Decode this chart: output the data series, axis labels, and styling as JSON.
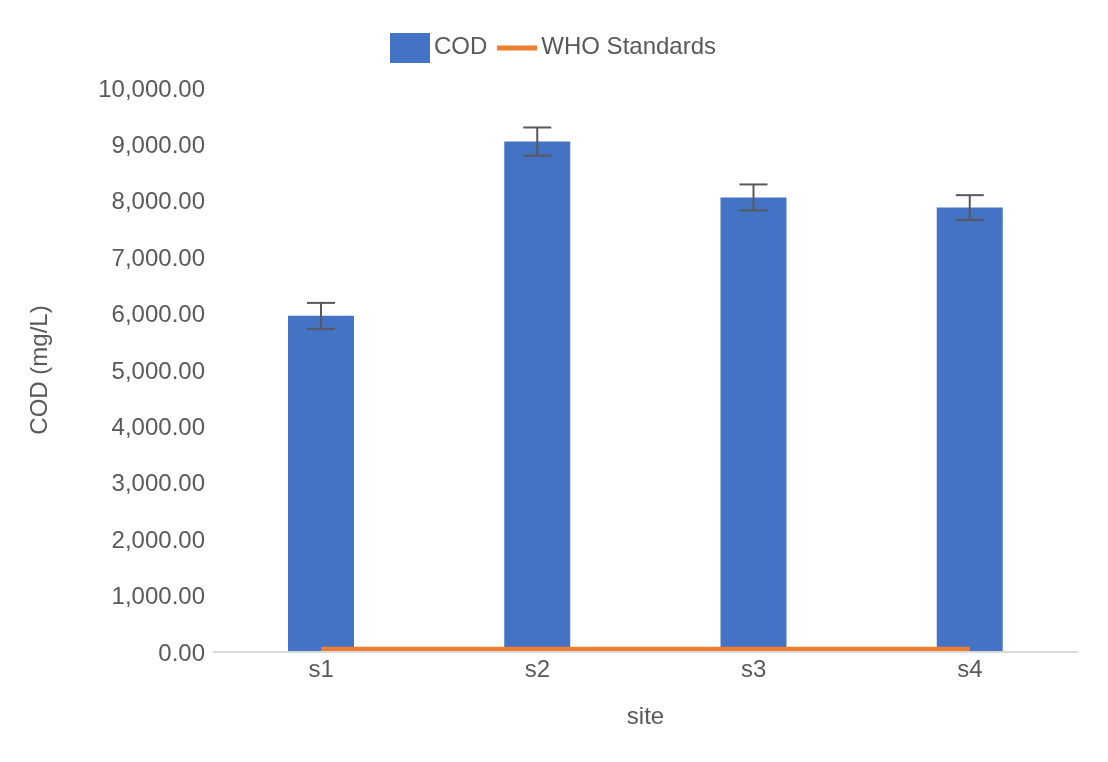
{
  "chart_data": {
    "type": "bar",
    "xlabel": "site",
    "ylabel": "COD (mg/L)",
    "categories": [
      "s1",
      "s2",
      "s3",
      "s4"
    ],
    "series": [
      {
        "name": "COD",
        "color": "#4472c4",
        "values": [
          5960,
          9050,
          8060,
          7880
        ],
        "errors": [
          230,
          250,
          230,
          220
        ]
      },
      {
        "name": "WHO Standards",
        "type": "line",
        "color": "#ed7d31",
        "values": [
          50,
          50,
          50,
          50
        ]
      }
    ],
    "ylim": [
      0,
      10000
    ],
    "yticks": [
      {
        "value": 0,
        "label": "0.00"
      },
      {
        "value": 1000,
        "label": "1,000.00"
      },
      {
        "value": 2000,
        "label": "2,000.00"
      },
      {
        "value": 3000,
        "label": "3,000.00"
      },
      {
        "value": 4000,
        "label": "4,000.00"
      },
      {
        "value": 5000,
        "label": "5,000.00"
      },
      {
        "value": 6000,
        "label": "6,000.00"
      },
      {
        "value": 7000,
        "label": "7,000.00"
      },
      {
        "value": 8000,
        "label": "8,000.00"
      },
      {
        "value": 9000,
        "label": "9,000.00"
      },
      {
        "value": 10000,
        "label": "10,000.00"
      }
    ],
    "grid": false,
    "legend": "top",
    "marker": "none"
  }
}
